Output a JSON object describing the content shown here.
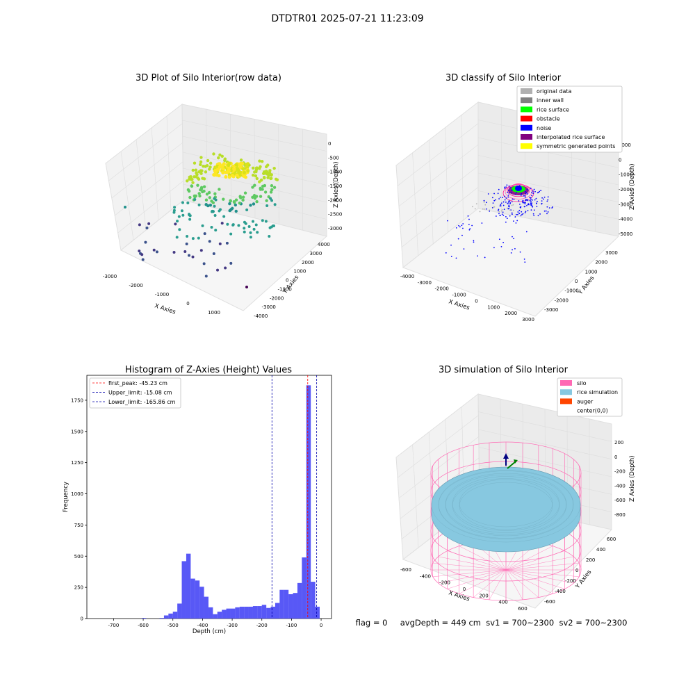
{
  "figure": {
    "suptitle": "DTDTR01 2025-07-21 11:23:09",
    "footer": "flag = 0     avgDepth = 449 cm  sv1 = 700~2300  sv2 = 700~2300"
  },
  "colors": {
    "hist_bar": "#4f4ff5",
    "first_peak": "#ff0000",
    "limit_line": "#0000aa",
    "silo": "#ff69b4",
    "rice": "#87c8e0",
    "auger": "#ff4500",
    "pane": "#f2f2f2",
    "grid": "#dddddd"
  },
  "chart_data": [
    {
      "type": "scatter",
      "title": "3D Plot of Silo Interior(row data)",
      "xlabel": "X Axies",
      "ylabel": "Y Axies",
      "zlabel": "Z Axies (Depth)",
      "x_ticks": [
        "-3000",
        "-2000",
        "-1000",
        "0",
        "1000"
      ],
      "y_ticks": [
        "-4000",
        "-3000",
        "-2000",
        "-1000",
        "0",
        "1000",
        "2000",
        "3000",
        "4000"
      ],
      "z_ticks": [
        "0",
        "-500",
        "-1000",
        "-1500",
        "-2000",
        "-2500",
        "-3000"
      ],
      "xlim": [
        -3300,
        1700
      ],
      "ylim": [
        -4300,
        4300
      ],
      "zlim": [
        -3300,
        200
      ]
    },
    {
      "type": "scatter",
      "title": "3D classify of Silo Interior",
      "xlabel": "X Axies",
      "ylabel": "Y Axies",
      "zlabel": "Z Axies (Depth)",
      "x_ticks": [
        "-4000",
        "-3000",
        "-2000",
        "-1000",
        "0",
        "1000",
        "2000",
        "3000"
      ],
      "y_ticks": [
        "-3000",
        "-2000",
        "-1000",
        "0",
        "1000",
        "2000",
        "3000"
      ],
      "z_ticks": [
        "1000",
        "0",
        "-1000",
        "-2000",
        "-3000",
        "-4000",
        "-5000"
      ],
      "legend": [
        {
          "label": "original data",
          "color": "#b0b0b0"
        },
        {
          "label": "inner wall",
          "color": "#808080"
        },
        {
          "label": "rice surface",
          "color": "#00ff00"
        },
        {
          "label": "obstacle",
          "color": "#ff0000"
        },
        {
          "label": "noise",
          "color": "#0000ff"
        },
        {
          "label": "interpolated rice surface",
          "color": "#800080"
        },
        {
          "label": "symmetric generated points",
          "color": "#ffff00"
        }
      ]
    },
    {
      "type": "bar",
      "title": "Histogram of Z-Axies (Height) Values",
      "xlabel": "Depth (cm)",
      "ylabel": "Frequency",
      "xlim": [
        -790,
        35
      ],
      "ylim": [
        0,
        1950
      ],
      "x_ticks": [
        -700,
        -600,
        -500,
        -400,
        -300,
        -200,
        -100,
        0
      ],
      "y_ticks": [
        0,
        250,
        500,
        750,
        1000,
        1250,
        1500,
        1750
      ],
      "bin_width": 15.1,
      "bins": [
        {
          "x0": -605,
          "v": 5
        },
        {
          "x0": -545,
          "v": 5
        },
        {
          "x0": -530,
          "v": 25
        },
        {
          "x0": -515,
          "v": 40
        },
        {
          "x0": -500,
          "v": 55
        },
        {
          "x0": -485,
          "v": 120
        },
        {
          "x0": -470,
          "v": 460
        },
        {
          "x0": -455,
          "v": 520
        },
        {
          "x0": -440,
          "v": 320
        },
        {
          "x0": -425,
          "v": 305
        },
        {
          "x0": -410,
          "v": 255
        },
        {
          "x0": -395,
          "v": 175
        },
        {
          "x0": -380,
          "v": 90
        },
        {
          "x0": -365,
          "v": 35
        },
        {
          "x0": -350,
          "v": 55
        },
        {
          "x0": -335,
          "v": 70
        },
        {
          "x0": -320,
          "v": 80
        },
        {
          "x0": -305,
          "v": 80
        },
        {
          "x0": -290,
          "v": 90
        },
        {
          "x0": -275,
          "v": 95
        },
        {
          "x0": -260,
          "v": 95
        },
        {
          "x0": -245,
          "v": 95
        },
        {
          "x0": -230,
          "v": 100
        },
        {
          "x0": -215,
          "v": 100
        },
        {
          "x0": -200,
          "v": 110
        },
        {
          "x0": -185,
          "v": 85
        },
        {
          "x0": -170,
          "v": 95
        },
        {
          "x0": -155,
          "v": 125
        },
        {
          "x0": -140,
          "v": 230
        },
        {
          "x0": -125,
          "v": 230
        },
        {
          "x0": -110,
          "v": 195
        },
        {
          "x0": -95,
          "v": 205
        },
        {
          "x0": -80,
          "v": 285
        },
        {
          "x0": -65,
          "v": 490
        },
        {
          "x0": -50,
          "v": 1870
        },
        {
          "x0": -35,
          "v": 295
        },
        {
          "x0": -20,
          "v": 95
        }
      ],
      "lines": [
        {
          "label": "first_peak: -45.23 cm",
          "value": -45.23,
          "color": "#ff0000"
        },
        {
          "label": "Upper_limit: -15.08 cm",
          "value": -15.08,
          "color": "#0000aa"
        },
        {
          "label": "Lower_limit: -165.86 cm",
          "value": -165.86,
          "color": "#0000aa"
        }
      ]
    },
    {
      "type": "surface",
      "title": "3D simulation of Silo Interior",
      "xlabel": "X Axies",
      "ylabel": "Y Axies",
      "zlabel": "Z Axies (Depth)",
      "x_ticks": [
        "-600",
        "-400",
        "-200",
        "0",
        "200",
        "400",
        "600"
      ],
      "y_ticks": [
        "-600",
        "-400",
        "-200",
        "0",
        "200",
        "400",
        "600"
      ],
      "z_ticks": [
        "200",
        "0",
        "-200",
        "-400",
        "-600",
        "-800"
      ],
      "legend": [
        {
          "label": "silo",
          "color": "#ff69b4"
        },
        {
          "label": "rice simulation",
          "color": "#87c8e0"
        },
        {
          "label": "auger",
          "color": "#ff4500"
        },
        {
          "label": "center(0,0)",
          "color": ""
        }
      ]
    }
  ]
}
